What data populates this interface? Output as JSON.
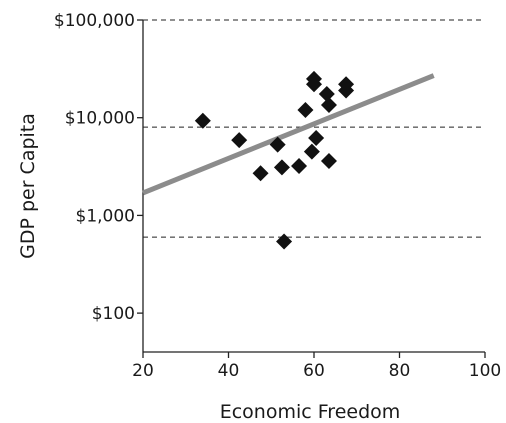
{
  "chart_data": {
    "type": "scatter",
    "title": "",
    "xlabel": "Economic Freedom",
    "ylabel": "GDP per Capita",
    "xlim": [
      20,
      100
    ],
    "x_ticks": [
      20,
      40,
      60,
      80,
      100
    ],
    "x_tick_labels": [
      "20",
      "40",
      "60",
      "80",
      "100"
    ],
    "y_scale": "log",
    "ylim": [
      40,
      100000
    ],
    "y_ticks": [
      100,
      1000,
      10000,
      100000
    ],
    "y_tick_labels": [
      "$100",
      "$1,000",
      "$10,000",
      "$100,000"
    ],
    "gridlines": [
      600,
      8000,
      100000
    ],
    "points": [
      {
        "x": 34,
        "y": 9300
      },
      {
        "x": 42.5,
        "y": 5900
      },
      {
        "x": 47.5,
        "y": 2700
      },
      {
        "x": 51.5,
        "y": 5300
      },
      {
        "x": 52.5,
        "y": 3100
      },
      {
        "x": 53,
        "y": 540
      },
      {
        "x": 56.5,
        "y": 3200
      },
      {
        "x": 58,
        "y": 12000
      },
      {
        "x": 59.5,
        "y": 4500
      },
      {
        "x": 60,
        "y": 25000
      },
      {
        "x": 60,
        "y": 22000
      },
      {
        "x": 60.5,
        "y": 6200
      },
      {
        "x": 63,
        "y": 17500
      },
      {
        "x": 63.5,
        "y": 13500
      },
      {
        "x": 63.5,
        "y": 3600
      },
      {
        "x": 67.5,
        "y": 22000
      },
      {
        "x": 67.5,
        "y": 19000
      }
    ],
    "trendline": {
      "x": [
        20,
        88
      ],
      "y": [
        1700,
        27000
      ]
    }
  }
}
